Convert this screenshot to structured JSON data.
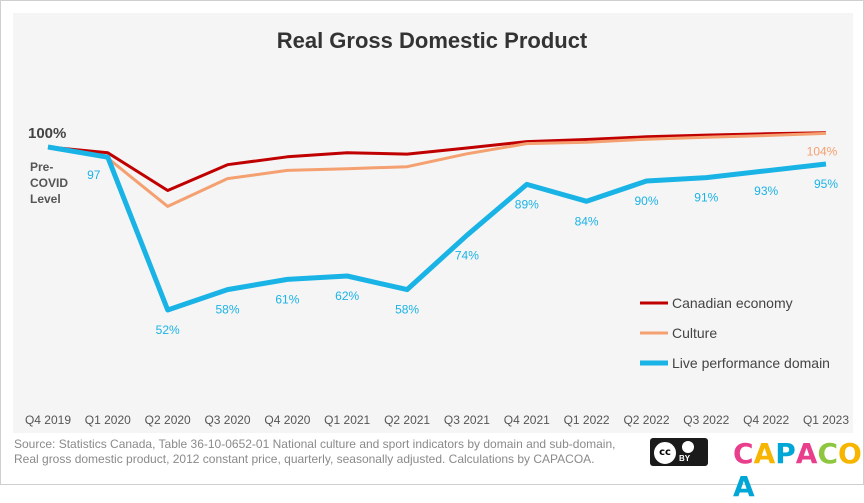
{
  "title": "Real Gross Domestic Product",
  "baseline_label": "100%",
  "baseline_sublabel_lines": [
    "Pre-",
    "COVID",
    "Level"
  ],
  "source_lines": [
    "Source: Statistics Canada, Table 36-10-0652-01 National culture and sport indicators by domain and sub-domain,",
    "Real gross domestic product, 2012 constant price, quarterly, seasonally adjusted. Calculations by CAPACOA."
  ],
  "license_icon": "cc-by-icon",
  "license_label": "BY",
  "logo_text": "CAPACOA",
  "logo_colors": [
    "#e83e8c",
    "#f7b500",
    "#00a6d6",
    "#e83e8c",
    "#8dc63f",
    "#f7b500",
    "#00a6d6"
  ],
  "chart_data": {
    "type": "line",
    "title": "Real Gross Domestic Product",
    "categories": [
      "Q4 2019",
      "Q1 2020",
      "Q2 2020",
      "Q3 2020",
      "Q4 2020",
      "Q1 2021",
      "Q2 2021",
      "Q3 2021",
      "Q4 2021",
      "Q1 2022",
      "Q2 2022",
      "Q3 2022",
      "Q4 2022",
      "Q1 2023"
    ],
    "ylim": [
      45,
      104
    ],
    "grid": false,
    "legend_position": "bottom-right",
    "series": [
      {
        "name": "Canadian economy",
        "color": "#c00000",
        "width": 3,
        "values": [
          100,
          98.3,
          87.2,
          94.8,
          97.1,
          98.3,
          97.9,
          99.7,
          101.6,
          102.2,
          103,
          103.5,
          103.9,
          104.2
        ]
      },
      {
        "name": "Culture",
        "color": "#f4a070",
        "width": 3,
        "values": [
          100,
          96.7,
          82.5,
          90.7,
          93.1,
          93.6,
          94.2,
          98,
          101,
          101.4,
          102.3,
          102.9,
          103.4,
          104
        ],
        "labels": [
          "",
          "",
          "",
          "",
          "",
          "",
          "",
          "",
          "",
          "",
          "",
          "",
          "",
          "104%"
        ]
      },
      {
        "name": "Live performance domain",
        "color": "#1ab3e6",
        "width": 5,
        "values": [
          100,
          97,
          52,
          58,
          61,
          62,
          58,
          74,
          89,
          84,
          90,
          91,
          93,
          95
        ],
        "labels": [
          "",
          "97",
          "52%",
          "58%",
          "61%",
          "62%",
          "58%",
          "74%",
          "89%",
          "84%",
          "90%",
          "91%",
          "93%",
          "95%"
        ]
      }
    ]
  }
}
